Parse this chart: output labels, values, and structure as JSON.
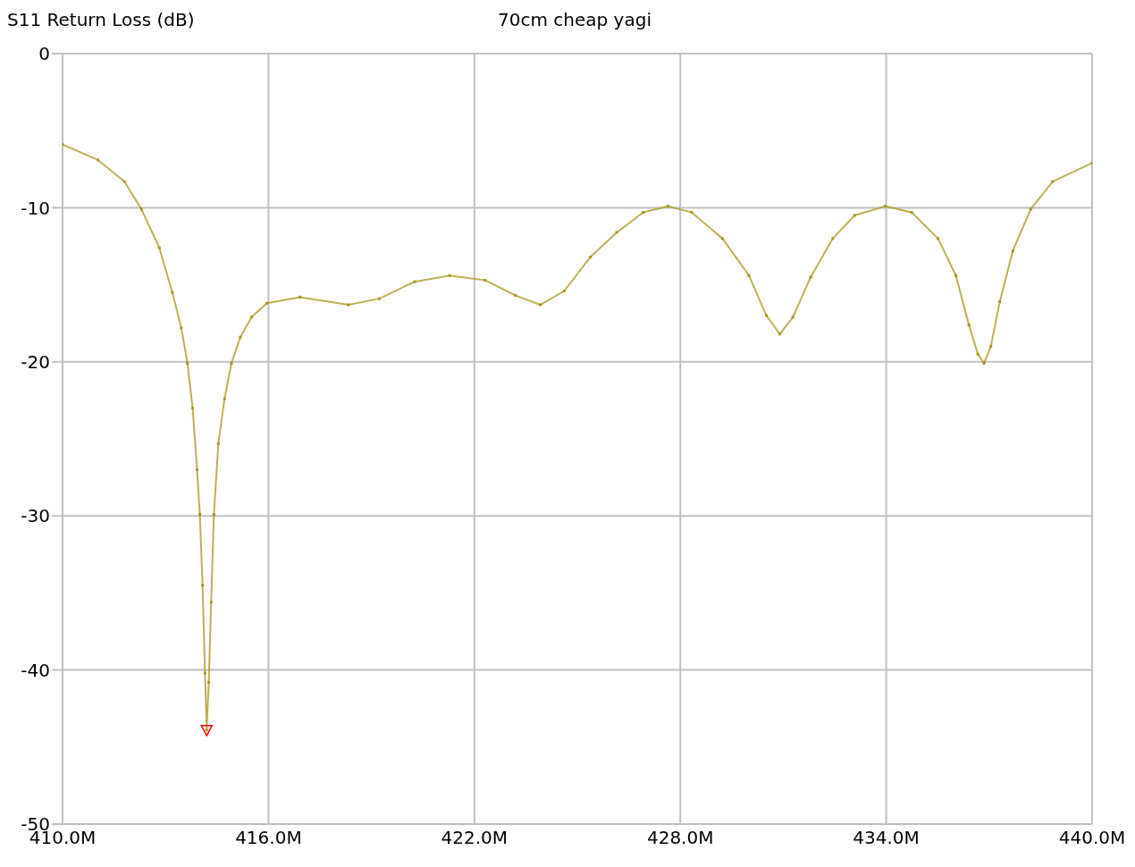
{
  "chart_data": {
    "type": "line",
    "title": "70cm cheap yagi",
    "ylabel": "S11 Return Loss (dB)",
    "xlim": [
      410,
      440
    ],
    "xticks": [
      {
        "value": 410,
        "label": "410.0M"
      },
      {
        "value": 416,
        "label": "416.0M"
      },
      {
        "value": 422,
        "label": "422.0M"
      },
      {
        "value": 428,
        "label": "428.0M"
      },
      {
        "value": 434,
        "label": "434.0M"
      },
      {
        "value": 440,
        "label": "440.0M"
      }
    ],
    "ylim": [
      -50,
      0
    ],
    "yticks": [
      0,
      -10,
      -20,
      -30,
      -40,
      -50
    ],
    "grid": true,
    "series": [
      {
        "type": "line",
        "color": "#a8961e",
        "marker": "square",
        "x": [
          410,
          411.03,
          411.8,
          412.3,
          412.82,
          413.2,
          413.46,
          413.64,
          413.79,
          413.92,
          414.0,
          414.08,
          414.15,
          414.2,
          414.26,
          414.33,
          414.41,
          414.54,
          414.72,
          414.92,
          415.18,
          415.51,
          415.95,
          416.92,
          418.33,
          419.23,
          420.26,
          421.28,
          422.31,
          423.2,
          423.92,
          424.62,
          425.38,
          426.15,
          426.92,
          427.64,
          428.33,
          429.23,
          430.0,
          430.51,
          430.9,
          431.28,
          431.8,
          432.44,
          433.08,
          433.97,
          434.74,
          435.51,
          436.03,
          436.41,
          436.67,
          436.85,
          437.05,
          437.31,
          437.69,
          438.21,
          438.85,
          440
        ],
        "values": [
          -5.9,
          -6.9,
          -8.3,
          -10.1,
          -12.6,
          -15.5,
          -17.8,
          -20.1,
          -23.0,
          -27.0,
          -29.9,
          -34.5,
          -40.2,
          -43.9,
          -40.8,
          -35.6,
          -29.9,
          -25.3,
          -22.4,
          -20.1,
          -18.4,
          -17.1,
          -16.2,
          -15.8,
          -16.3,
          -15.9,
          -14.8,
          -14.4,
          -14.7,
          -15.7,
          -16.3,
          -15.4,
          -13.2,
          -11.6,
          -10.3,
          -9.9,
          -10.3,
          -12.0,
          -14.4,
          -17.0,
          -18.2,
          -17.1,
          -14.5,
          -12.0,
          -10.5,
          -9.9,
          -10.3,
          -12.0,
          -14.4,
          -17.6,
          -19.5,
          -20.1,
          -19.0,
          -16.1,
          -12.8,
          -10.1,
          -8.3,
          -7.1
        ]
      },
      {
        "type": "scatter",
        "color": "#ff0000",
        "marker": "triangle",
        "x": [
          414.2
        ],
        "values": [
          -43.9
        ]
      }
    ]
  }
}
